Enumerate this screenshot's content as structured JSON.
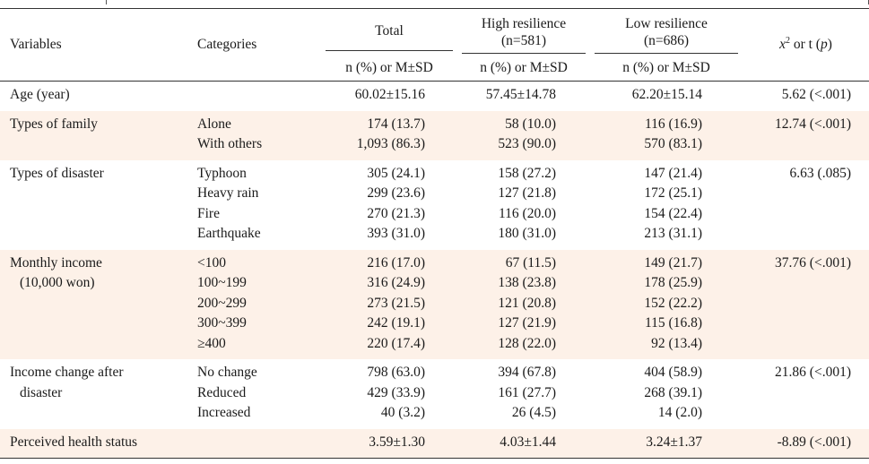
{
  "table": {
    "headers": {
      "variables": "Variables",
      "categories": "Categories",
      "total": "Total",
      "high_resilience": "High resilience",
      "high_n": "(n=581)",
      "low_resilience": "Low resilience",
      "low_n": "(n=686)",
      "stat_prefix": "x",
      "stat_sup": "2",
      "stat_mid": " or t (",
      "stat_p": "p",
      "stat_suffix": ")",
      "subheader": "n (%) or M±SD"
    },
    "rows": [
      {
        "variable": [
          "Age (year)"
        ],
        "categories": [
          ""
        ],
        "total": [
          "60.02±15.16"
        ],
        "high": [
          "57.45±14.78"
        ],
        "low": [
          "62.20±15.14"
        ],
        "stat": "5.62 (<.001)"
      },
      {
        "variable": [
          "Types of family"
        ],
        "categories": [
          "Alone",
          "With others"
        ],
        "total": [
          "174 (13.7)",
          "1,093 (86.3)"
        ],
        "high": [
          "58 (10.0)",
          "523 (90.0)"
        ],
        "low": [
          "116 (16.9)",
          "570 (83.1)"
        ],
        "stat": "12.74 (<.001)"
      },
      {
        "variable": [
          "Types of disaster"
        ],
        "categories": [
          "Typhoon",
          "Heavy rain",
          "Fire",
          "Earthquake"
        ],
        "total": [
          "305 (24.1)",
          "299 (23.6)",
          "270 (21.3)",
          "393 (31.0)"
        ],
        "high": [
          "158 (27.2)",
          "127 (21.8)",
          "116 (20.0)",
          "180 (31.0)"
        ],
        "low": [
          "147 (21.4)",
          "172 (25.1)",
          "154 (22.4)",
          "213 (31.1)"
        ],
        "stat": "6.63 (.085)"
      },
      {
        "variable": [
          "Monthly income",
          "(10,000 won)"
        ],
        "categories": [
          "<100",
          "100~199",
          "200~299",
          "300~399",
          "≥400"
        ],
        "total": [
          "216 (17.0)",
          "316 (24.9)",
          "273 (21.5)",
          "242 (19.1)",
          "220 (17.4)"
        ],
        "high": [
          "67 (11.5)",
          "138 (23.8)",
          "121 (20.8)",
          "127 (21.9)",
          "128 (22.0)"
        ],
        "low": [
          "149 (21.7)",
          "178 (25.9)",
          "152 (22.2)",
          "115 (16.8)",
          "92 (13.4)"
        ],
        "stat": "37.76 (<.001)"
      },
      {
        "variable": [
          "Income change after",
          "disaster"
        ],
        "categories": [
          "No change",
          "Reduced",
          "Increased"
        ],
        "total": [
          "798 (63.0)",
          "429 (33.9)",
          "40 (3.2)"
        ],
        "high": [
          "394 (67.8)",
          "161 (27.7)",
          "26 (4.5)"
        ],
        "low": [
          "404 (58.9)",
          "268 (39.1)",
          "14 (2.0)"
        ],
        "stat": "21.86 (<.001)"
      },
      {
        "variable": [
          "Perceived health status"
        ],
        "categories": [
          ""
        ],
        "total": [
          "3.59±1.30"
        ],
        "high": [
          "4.03±1.44"
        ],
        "low": [
          "3.24±1.37"
        ],
        "stat": "-8.89 (<.001)"
      }
    ]
  },
  "colors": {
    "shade": "#fdf1e8",
    "rule": "#333333",
    "text": "#1a1a1a"
  }
}
